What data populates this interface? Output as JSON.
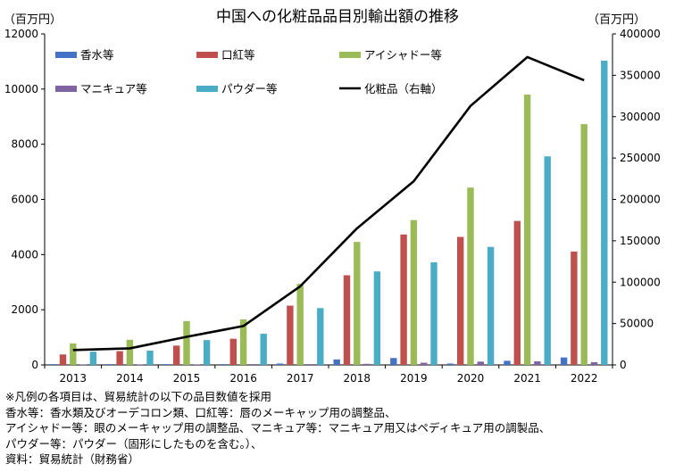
{
  "chart_data": {
    "type": "bar+line",
    "title": "中国への化粧品品目別輸出額の推移",
    "ylabel_left": "（百万円）",
    "ylabel_right": "（百万円）",
    "categories": [
      "2013",
      "2014",
      "2015",
      "2016",
      "2017",
      "2018",
      "2019",
      "2020",
      "2021",
      "2022"
    ],
    "ylim_left": [
      0,
      12000
    ],
    "yticks_left": [
      0,
      2000,
      4000,
      6000,
      8000,
      10000,
      12000
    ],
    "ylim_right": [
      0,
      400000
    ],
    "yticks_right": [
      0,
      50000,
      100000,
      150000,
      200000,
      250000,
      300000,
      350000,
      400000
    ],
    "grid": false,
    "legend_placement": "top",
    "series": [
      {
        "name": "香水等",
        "axis": "left",
        "color": "#4472C4",
        "values": [
          30,
          30,
          30,
          30,
          50,
          200,
          250,
          50,
          150,
          270
        ]
      },
      {
        "name": "口紅等",
        "axis": "left",
        "color": "#C0504D",
        "values": [
          380,
          500,
          700,
          950,
          2150,
          3250,
          4730,
          4640,
          5220,
          4110
        ]
      },
      {
        "name": "アイシャドー等",
        "axis": "left",
        "color": "#9BBB59",
        "values": [
          780,
          910,
          1590,
          1650,
          2940,
          4460,
          5250,
          6430,
          9800,
          8730
        ]
      },
      {
        "name": "マニキュア等",
        "axis": "left",
        "color": "#8064A2",
        "values": [
          20,
          20,
          20,
          30,
          30,
          40,
          80,
          120,
          130,
          100
        ]
      },
      {
        "name": "パウダー等",
        "axis": "left",
        "color": "#4BACC6",
        "values": [
          480,
          520,
          900,
          1130,
          2060,
          3390,
          3720,
          4280,
          7560,
          11030
        ]
      },
      {
        "name": "化粧品（右軸）",
        "axis": "right",
        "type": "line",
        "color": "#000000",
        "values": [
          18000,
          20000,
          34000,
          47000,
          95000,
          165000,
          222000,
          313000,
          372000,
          344000
        ]
      }
    ]
  },
  "notes": [
    "※凡例の各項目は、貿易統計の以下の品目数値を採用",
    "香水等：香水類及びオーデコロン類、口紅等：唇のメーキャップ用の調整品、",
    "アイシャドー等：眼のメーキャップ用の調整品、マニキュア等：マニキュア用又はペディキュア用の調製品、",
    "パウダー等：パウダー（固形にしたものを含む。）、",
    "資料：貿易統計（財務省）"
  ]
}
